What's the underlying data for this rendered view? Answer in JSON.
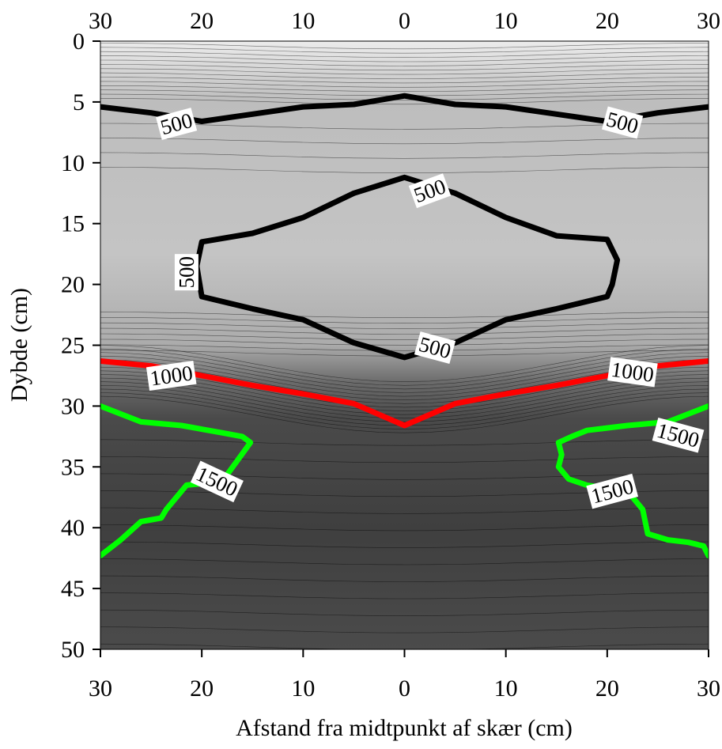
{
  "chart_data": {
    "type": "contour",
    "xlabel": "Afstand fra midtpunkt af skær (cm)",
    "ylabel": "Dybde (cm)",
    "x_ticks": [
      "30",
      "20",
      "10",
      "0",
      "10",
      "20",
      "30"
    ],
    "x_tick_values": [
      -30,
      -20,
      -10,
      0,
      10,
      20,
      30
    ],
    "y_ticks": [
      "0",
      "5",
      "10",
      "15",
      "20",
      "25",
      "30",
      "35",
      "40",
      "45",
      "50"
    ],
    "xlim": [
      -30,
      30
    ],
    "ylim": [
      0,
      50
    ],
    "y_inverted": true,
    "x_axis_labels_top_and_bottom": true,
    "fill": "grayscale shading, darker with higher values",
    "series": [
      {
        "name": "500",
        "color": "#000000",
        "x": [
          -30,
          -25,
          -20,
          -15,
          -10,
          -5,
          0,
          5,
          10,
          15,
          20,
          25,
          30
        ],
        "y": [
          5.4,
          5.9,
          6.6,
          6.0,
          5.4,
          5.2,
          4.5,
          5.2,
          5.4,
          6.0,
          6.6,
          5.9,
          5.4
        ]
      },
      {
        "name": "500",
        "color": "#000000",
        "closed": true,
        "x": [
          0,
          5,
          10,
          15,
          20,
          21,
          20.5,
          20,
          15,
          10,
          5,
          0,
          -5,
          -10,
          -15,
          -20,
          -20.5,
          -20,
          -15,
          -10,
          -5,
          0
        ],
        "y": [
          11.2,
          12.5,
          14.5,
          16.0,
          16.3,
          18.0,
          20.0,
          21.0,
          22.0,
          22.9,
          24.8,
          26.0,
          24.8,
          22.9,
          22.0,
          21.0,
          18.5,
          16.5,
          15.8,
          14.5,
          12.5,
          11.2
        ]
      },
      {
        "name": "1000",
        "color": "#ff0000",
        "x": [
          -30,
          -25,
          -20,
          -15,
          -10,
          -5,
          0,
          5,
          10,
          15,
          20,
          25,
          30
        ],
        "y": [
          26.3,
          26.7,
          27.5,
          28.3,
          29.0,
          29.8,
          31.6,
          29.8,
          29.0,
          28.3,
          27.5,
          26.7,
          26.3
        ]
      },
      {
        "name": "1500",
        "color": "#00ff00",
        "x": [
          -30,
          -26,
          -22,
          -18,
          -16,
          -15.2,
          -16.5,
          -18,
          -21.5,
          -23.5,
          -24,
          -26,
          -28,
          -30
        ],
        "y": [
          30.0,
          31.3,
          31.6,
          32.2,
          32.5,
          33.0,
          34.5,
          36.2,
          36.5,
          38.5,
          39.2,
          39.5,
          41.0,
          42.3
        ]
      },
      {
        "name": "1500",
        "color": "#00ff00",
        "x": [
          30,
          26,
          22,
          18,
          16.5,
          15.2,
          15.5,
          15.2,
          16.2,
          18,
          22,
          23.5,
          24,
          26,
          28,
          29.5,
          30
        ],
        "y": [
          30.0,
          31.3,
          31.6,
          32.0,
          32.5,
          33.0,
          34.0,
          35.0,
          36.0,
          36.5,
          37.0,
          38.5,
          40.5,
          41.0,
          41.2,
          41.5,
          42.3
        ]
      }
    ],
    "contour_labels": [
      {
        "text": "500",
        "x": -22.5,
        "y": 6.8,
        "angle": 15
      },
      {
        "text": "500",
        "x": 21.5,
        "y": 6.7,
        "angle": -15
      },
      {
        "text": "500",
        "x": 2.5,
        "y": 12.3,
        "angle": 20
      },
      {
        "text": "500",
        "x": -21.5,
        "y": 19.0,
        "angle": 90
      },
      {
        "text": "500",
        "x": 3.0,
        "y": 25.2,
        "angle": -15
      },
      {
        "text": "1000",
        "x": -23,
        "y": 27.5,
        "angle": 8
      },
      {
        "text": "1000",
        "x": 22.5,
        "y": 27.2,
        "angle": -8
      },
      {
        "text": "1500",
        "x": 27,
        "y": 32.4,
        "angle": -15
      },
      {
        "text": "1500",
        "x": -18.5,
        "y": 36.2,
        "angle": -25
      },
      {
        "text": "1500",
        "x": 20.5,
        "y": 37.0,
        "angle": 15
      }
    ]
  }
}
